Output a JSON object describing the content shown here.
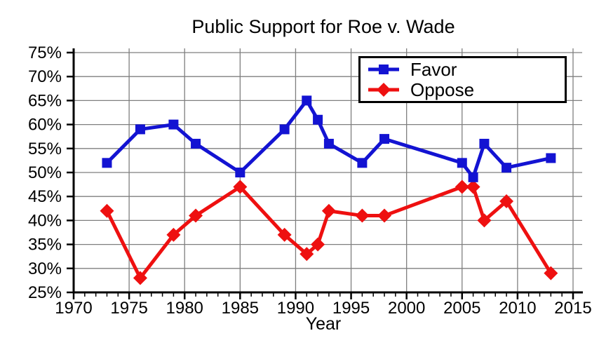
{
  "page": {
    "background": "#ffffff"
  },
  "chart_data": {
    "type": "line",
    "title": "Public Support for Roe v. Wade",
    "xlabel": "Year",
    "ylabel": "",
    "xlim": [
      1970,
      2015
    ],
    "ylim": [
      25,
      75
    ],
    "x_ticks": [
      1970,
      1975,
      1980,
      1985,
      1990,
      1995,
      2000,
      2005,
      2010,
      2015
    ],
    "x_minor_tick_step": 1,
    "y_ticks": [
      25,
      30,
      35,
      40,
      45,
      50,
      55,
      60,
      65,
      70,
      75
    ],
    "y_tick_suffix": "%",
    "grid": true,
    "legend_position": "top-right-inside",
    "x": [
      1973,
      1976,
      1979,
      1981,
      1985,
      1989,
      1991,
      1992,
      1993,
      1996,
      1998,
      2005,
      2006,
      2007,
      2009,
      2013
    ],
    "series": [
      {
        "name": "Favor",
        "marker": "square",
        "color": "#1313d2",
        "values": [
          52,
          59,
          60,
          56,
          50,
          59,
          65,
          61,
          56,
          52,
          57,
          52,
          49,
          56,
          51,
          53
        ]
      },
      {
        "name": "Oppose",
        "marker": "diamond",
        "color": "#ee1010",
        "values": [
          42,
          28,
          37,
          41,
          47,
          37,
          33,
          35,
          42,
          41,
          41,
          47,
          47,
          40,
          44,
          29
        ]
      }
    ],
    "colors": {
      "grid": "#7f7f7f",
      "axis": "#000000",
      "text": "#000000"
    }
  }
}
